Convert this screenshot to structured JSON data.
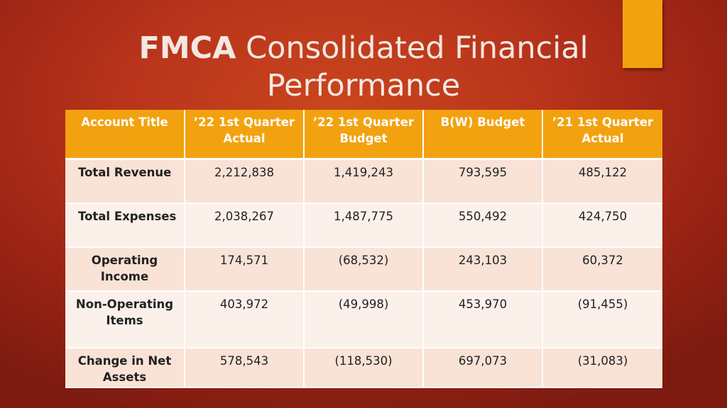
{
  "slide": {
    "title_bold": "FMCA",
    "title_rest": " Consolidated Financial",
    "title_line2": "Performance",
    "accent_color": "#f2a20f"
  },
  "table": {
    "headers": [
      "Account Title",
      "’22 1st  Quarter Actual",
      "’22 1st Quarter Budget",
      "B(W)  Budget",
      "’21 1st  Quarter Actual"
    ],
    "rows": [
      {
        "title": "Total Revenue",
        "values": [
          "2,212,838",
          "1,419,243",
          "793,595",
          "485,122"
        ]
      },
      {
        "title": "Total Expenses",
        "values": [
          "2,038,267",
          "1,487,775",
          "550,492",
          "424,750"
        ]
      },
      {
        "title": "Operating Income",
        "values": [
          "174,571",
          "(68,532)",
          "243,103",
          "60,372"
        ]
      },
      {
        "title": "Non-Operating Items",
        "values": [
          "403,972",
          "(49,998)",
          "453,970",
          "(91,455)"
        ]
      },
      {
        "title": "Change in Net Assets",
        "values": [
          "578,543",
          "(118,530)",
          "697,073",
          "(31,083)"
        ]
      }
    ]
  }
}
